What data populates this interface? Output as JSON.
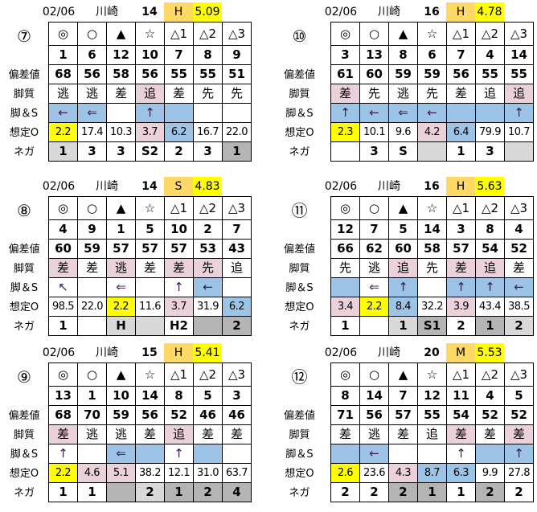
{
  "row_labels": [
    "偏差値",
    "脚質",
    "脚＆S",
    "想定O",
    "ネガ"
  ],
  "marks": [
    "◎",
    "○",
    "▲",
    "☆",
    "△1",
    "△2",
    "△3"
  ],
  "colors": {
    "b": "#9dc3e6",
    "p": "#ead1dc",
    "y": "#ffff00",
    "g": "#d9d9d9",
    "d": "#b4b4b4",
    "header_grade": "#ffd966"
  },
  "races": [
    {
      "circle": "⑦",
      "date": "02/06",
      "venue": "川崎",
      "count": "14",
      "grade": "H",
      "value": "5.09",
      "nums": [
        "1",
        "6",
        "12",
        "10",
        "7",
        "8",
        "9"
      ],
      "dev": [
        "68",
        "56",
        "58",
        "56",
        "55",
        "55",
        "51"
      ],
      "style": [
        "逃",
        "逃",
        "差",
        "追",
        "差",
        "先",
        "先"
      ],
      "style_bg": [
        "",
        "",
        "",
        "p",
        "",
        "",
        ""
      ],
      "arrows": [
        "←",
        "⇐",
        "",
        "↑",
        "",
        "",
        ""
      ],
      "arrows_bg": [
        "b",
        "b",
        "",
        "b",
        "b",
        "",
        ""
      ],
      "odds": [
        "2.2",
        "17.4",
        "10.3",
        "3.7",
        "6.2",
        "16.7",
        "22.0"
      ],
      "odds_bg": [
        "y",
        "",
        "",
        "p",
        "b",
        "",
        ""
      ],
      "nega": [
        "1",
        "3",
        "3",
        "S2",
        "2",
        "3",
        "1"
      ],
      "nega_bg": [
        "g",
        "",
        "",
        "",
        "",
        "",
        "d"
      ]
    },
    {
      "circle": "⑩",
      "date": "02/06",
      "venue": "川崎",
      "count": "16",
      "grade": "H",
      "value": "4.78",
      "nums": [
        "3",
        "13",
        "8",
        "6",
        "7",
        "4",
        "14"
      ],
      "dev": [
        "61",
        "60",
        "59",
        "59",
        "56",
        "55",
        "55"
      ],
      "style": [
        "差",
        "先",
        "逃",
        "先",
        "差",
        "追",
        "追"
      ],
      "style_bg": [
        "p",
        "",
        "",
        "",
        "",
        "",
        "p"
      ],
      "arrows": [
        "↑",
        "←",
        "⇐",
        "←",
        "",
        "",
        "↑"
      ],
      "arrows_bg": [
        "b",
        "b",
        "b",
        "b",
        "b",
        "b",
        "b"
      ],
      "odds": [
        "2.3",
        "10.1",
        "9.6",
        "4.2",
        "6.4",
        "79.9",
        "10.7"
      ],
      "odds_bg": [
        "y",
        "",
        "",
        "p",
        "b",
        "",
        ""
      ],
      "nega": [
        "",
        "3",
        "S",
        "",
        "1",
        "3",
        ""
      ],
      "nega_bg": [
        "",
        "",
        "",
        "g",
        "",
        "",
        "g"
      ]
    },
    {
      "circle": "⑧",
      "date": "02/06",
      "venue": "川崎",
      "count": "14",
      "grade": "S",
      "value": "4.83",
      "nums": [
        "4",
        "9",
        "1",
        "5",
        "10",
        "2",
        "7"
      ],
      "dev": [
        "60",
        "59",
        "57",
        "57",
        "57",
        "53",
        "43"
      ],
      "style": [
        "差",
        "差",
        "逃",
        "差",
        "差",
        "先",
        "追"
      ],
      "style_bg": [
        "p",
        "",
        "p",
        "",
        "p",
        "p",
        ""
      ],
      "arrows": [
        "↖",
        "",
        "⇐",
        "",
        "↑",
        "←",
        ""
      ],
      "arrows_bg": [
        "",
        "",
        "",
        "",
        "",
        "b",
        ""
      ],
      "odds": [
        "98.5",
        "22.0",
        "2.2",
        "11.6",
        "3.7",
        "31.9",
        "6.2"
      ],
      "odds_bg": [
        "",
        "",
        "y",
        "",
        "p",
        "",
        "b"
      ],
      "nega": [
        "1",
        "",
        "H",
        "",
        "H2",
        "",
        "2"
      ],
      "nega_bg": [
        "",
        "",
        "g",
        "g",
        "",
        "d",
        "d"
      ]
    },
    {
      "circle": "⑪",
      "date": "02/06",
      "venue": "川崎",
      "count": "16",
      "grade": "H",
      "value": "5.63",
      "nums": [
        "12",
        "7",
        "5",
        "14",
        "3",
        "8",
        "4"
      ],
      "dev": [
        "66",
        "62",
        "60",
        "58",
        "57",
        "54",
        "52"
      ],
      "style": [
        "先",
        "逃",
        "追",
        "先",
        "差",
        "追",
        "差"
      ],
      "style_bg": [
        "",
        "",
        "p",
        "",
        "p",
        "p",
        ""
      ],
      "arrows": [
        "",
        "⇐",
        "↑",
        "",
        "↑",
        "↑",
        "←"
      ],
      "arrows_bg": [
        "b",
        "",
        "b",
        "",
        "b",
        "b",
        "b"
      ],
      "odds": [
        "3.4",
        "2.2",
        "8.4",
        "32.2",
        "3.9",
        "43.4",
        "38.5"
      ],
      "odds_bg": [
        "p",
        "y",
        "b",
        "",
        "p",
        "",
        ""
      ],
      "nega": [
        "1",
        "",
        "1",
        "S1",
        "2",
        "1",
        "2"
      ],
      "nega_bg": [
        "",
        "",
        "g",
        "d",
        "",
        "d",
        "g"
      ]
    },
    {
      "circle": "⑨",
      "date": "02/06",
      "venue": "川崎",
      "count": "15",
      "grade": "H",
      "value": "5.41",
      "nums": [
        "13",
        "1",
        "10",
        "14",
        "8",
        "5",
        "3"
      ],
      "dev": [
        "68",
        "70",
        "59",
        "56",
        "52",
        "46",
        "46"
      ],
      "style": [
        "差",
        "逃",
        "逃",
        "差",
        "追",
        "差",
        "差"
      ],
      "style_bg": [
        "p",
        "",
        "",
        "",
        "p",
        "",
        ""
      ],
      "arrows": [
        "↑",
        "",
        "⇐",
        "",
        "↑",
        "",
        ""
      ],
      "arrows_bg": [
        "",
        "",
        "b",
        "b",
        "",
        "b",
        ""
      ],
      "odds": [
        "2.2",
        "4.6",
        "5.1",
        "38.2",
        "12.1",
        "31.0",
        "63.7"
      ],
      "odds_bg": [
        "y",
        "p",
        "p",
        "",
        "",
        "",
        ""
      ],
      "nega": [
        "1",
        "1",
        "",
        "2",
        "1",
        "2",
        "4"
      ],
      "nega_bg": [
        "",
        "",
        "d",
        "g",
        "d",
        "d",
        "d"
      ]
    },
    {
      "circle": "⑫",
      "date": "02/06",
      "venue": "川崎",
      "count": "20",
      "grade": "M",
      "value": "5.53",
      "nums": [
        "8",
        "14",
        "7",
        "12",
        "11",
        "4",
        "5"
      ],
      "dev": [
        "71",
        "56",
        "57",
        "55",
        "54",
        "52",
        "52"
      ],
      "style": [
        "差",
        "逃",
        "差",
        "追",
        "差",
        "差",
        "差"
      ],
      "style_bg": [
        "",
        "",
        "",
        "",
        "p",
        "",
        "p"
      ],
      "arrows": [
        "",
        "←",
        "",
        "",
        "↑",
        "",
        "↑"
      ],
      "arrows_bg": [
        "b",
        "b",
        "",
        "",
        "",
        "b",
        "b"
      ],
      "odds": [
        "2.6",
        "23.6",
        "4.3",
        "8.7",
        "6.3",
        "9.9",
        "27.8"
      ],
      "odds_bg": [
        "y",
        "",
        "p",
        "b",
        "b",
        "",
        ""
      ],
      "nega": [
        "2",
        "2",
        "2",
        "1",
        "1",
        "2",
        "2"
      ],
      "nega_bg": [
        "",
        "",
        "d",
        "d",
        "",
        "d",
        ""
      ]
    }
  ]
}
